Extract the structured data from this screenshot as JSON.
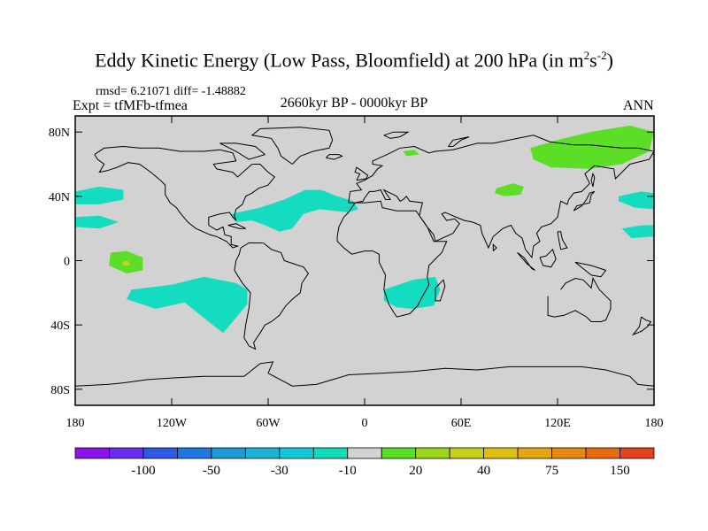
{
  "title": {
    "main": "Eddy Kinetic Energy (Low Pass, Bloomfield) at 200 hPa (in m",
    "sup1": "2",
    "mid": "s",
    "sup2": "-2",
    "end": ")"
  },
  "stats": "rmsd= 6.21071 diff= -1.48882",
  "experiment": "Expt = tfMFb-tfmea",
  "period": "2660kyr BP - 0000kyr BP",
  "season": "ANN",
  "axes": {
    "lat_ticks": [
      {
        "lat": 80,
        "label": "80N"
      },
      {
        "lat": 40,
        "label": "40N"
      },
      {
        "lat": 0,
        "label": "0"
      },
      {
        "lat": -40,
        "label": "40S"
      },
      {
        "lat": -80,
        "label": "80S"
      }
    ],
    "lon_ticks": [
      {
        "lon": -180,
        "label": "180"
      },
      {
        "lon": -120,
        "label": "120W"
      },
      {
        "lon": -60,
        "label": "60W"
      },
      {
        "lon": 0,
        "label": "0"
      },
      {
        "lon": 60,
        "label": "60E"
      },
      {
        "lon": 120,
        "label": "120E"
      },
      {
        "lon": 180,
        "label": "180"
      }
    ]
  },
  "colorbar": {
    "colors": [
      "#8b12e8",
      "#6a2cee",
      "#2f58e6",
      "#1f77e0",
      "#1f9ad6",
      "#1bb2d6",
      "#14c8d8",
      "#0fddb8",
      "#d2d2d2",
      "#5cdd26",
      "#9bd61b",
      "#c8d21b",
      "#dfc013",
      "#e5a612",
      "#e8870f",
      "#e86a10",
      "#e4421a"
    ],
    "labels": [
      {
        "after_box": 2,
        "text": "-100"
      },
      {
        "after_box": 4,
        "text": "-50"
      },
      {
        "after_box": 6,
        "text": "-30"
      },
      {
        "after_box": 8,
        "text": "-10"
      },
      {
        "after_box": 10,
        "text": "20"
      },
      {
        "after_box": 12,
        "text": "40"
      },
      {
        "after_box": 14,
        "text": "75"
      },
      {
        "after_box": 16,
        "text": "150"
      }
    ]
  },
  "colors": {
    "ocean_land": "#d2d2d2",
    "neg_cyan": "#14dcc0",
    "pos_green": "#5cdd26",
    "pos_lime": "#c8d21b"
  },
  "map_data": {
    "type": "filled-contour",
    "regions": [
      {
        "name": "north-pacific-east",
        "level": "-10",
        "lonlat": [
          [
            -180,
            43
          ],
          [
            -165,
            46
          ],
          [
            -150,
            44
          ],
          [
            -150,
            38
          ],
          [
            -165,
            35
          ],
          [
            -180,
            35
          ]
        ]
      },
      {
        "name": "subtropical-pacific-east",
        "level": "-10",
        "lonlat": [
          [
            -180,
            27
          ],
          [
            -165,
            28
          ],
          [
            -153,
            24
          ],
          [
            -165,
            20
          ],
          [
            -180,
            21
          ]
        ]
      },
      {
        "name": "north-atlantic-band",
        "level": "-10",
        "lonlat": [
          [
            -83,
            29
          ],
          [
            -65,
            33
          ],
          [
            -50,
            38
          ],
          [
            -37,
            44
          ],
          [
            -27,
            44
          ],
          [
            -17,
            40
          ],
          [
            -7,
            37
          ],
          [
            -4,
            32
          ],
          [
            -10,
            30
          ],
          [
            -28,
            32
          ],
          [
            -38,
            29
          ],
          [
            -45,
            20
          ],
          [
            -53,
            18
          ],
          [
            -62,
            22
          ],
          [
            -70,
            25
          ],
          [
            -80,
            24
          ]
        ]
      },
      {
        "name": "south-pacific",
        "level": "-10",
        "lonlat": [
          [
            -145,
            -18
          ],
          [
            -120,
            -15
          ],
          [
            -100,
            -10
          ],
          [
            -80,
            -14
          ],
          [
            -73,
            -18
          ],
          [
            -73,
            -27
          ],
          [
            -82,
            -38
          ],
          [
            -88,
            -45
          ],
          [
            -97,
            -38
          ],
          [
            -112,
            -26
          ],
          [
            -130,
            -30
          ],
          [
            -148,
            -24
          ]
        ]
      },
      {
        "name": "south-africa",
        "level": "-10",
        "lonlat": [
          [
            12,
            -18
          ],
          [
            30,
            -12
          ],
          [
            44,
            -10
          ],
          [
            47,
            -18
          ],
          [
            43,
            -28
          ],
          [
            30,
            -30
          ],
          [
            20,
            -29
          ],
          [
            12,
            -25
          ]
        ]
      },
      {
        "name": "west-pacific-north",
        "level": "-10",
        "lonlat": [
          [
            158,
            40
          ],
          [
            172,
            43
          ],
          [
            180,
            42
          ],
          [
            180,
            32
          ],
          [
            168,
            33
          ],
          [
            158,
            37
          ]
        ]
      },
      {
        "name": "west-pacific-subtropic",
        "level": "-10",
        "lonlat": [
          [
            160,
            20
          ],
          [
            172,
            22
          ],
          [
            180,
            22
          ],
          [
            180,
            15
          ],
          [
            166,
            14
          ]
        ]
      },
      {
        "name": "siberia-north",
        "level": "20",
        "lonlat": [
          [
            103,
            70
          ],
          [
            120,
            75
          ],
          [
            140,
            80
          ],
          [
            165,
            84
          ],
          [
            180,
            80
          ],
          [
            177,
            68
          ],
          [
            160,
            60
          ],
          [
            140,
            57
          ],
          [
            116,
            58
          ],
          [
            105,
            63
          ]
        ]
      },
      {
        "name": "central-asia",
        "level": "20",
        "lonlat": [
          [
            82,
            45
          ],
          [
            92,
            48
          ],
          [
            99,
            46
          ],
          [
            97,
            41
          ],
          [
            87,
            40
          ],
          [
            81,
            42
          ]
        ]
      },
      {
        "name": "scandinavia-small",
        "level": "20",
        "lonlat": [
          [
            24,
            68
          ],
          [
            31,
            69
          ],
          [
            34,
            66
          ],
          [
            26,
            65
          ]
        ]
      },
      {
        "name": "tropical-pacific",
        "level": "20",
        "lonlat": [
          [
            -158,
            5
          ],
          [
            -148,
            6
          ],
          [
            -138,
            2
          ],
          [
            -138,
            -6
          ],
          [
            -148,
            -8
          ],
          [
            -159,
            -3
          ]
        ]
      },
      {
        "name": "tropical-pacific-core",
        "level": "40",
        "lonlat": [
          [
            -151,
            -1
          ],
          [
            -147,
            0
          ],
          [
            -146,
            -3
          ],
          [
            -150,
            -3
          ]
        ]
      }
    ]
  }
}
